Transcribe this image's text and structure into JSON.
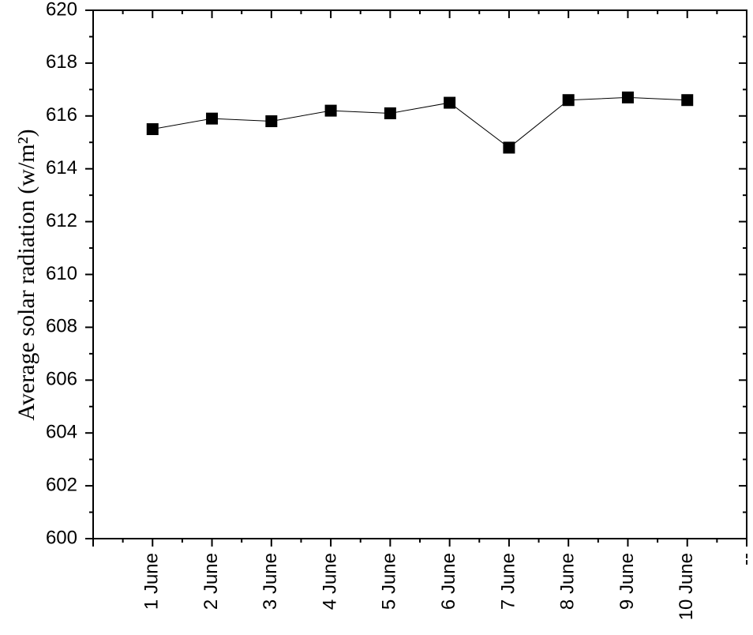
{
  "chart_data": {
    "type": "line",
    "y_label": "Average solar radiation (w/m²)",
    "categories": [
      null,
      "1 June",
      "2 June",
      "3 June",
      "4 June",
      "5 June",
      "6 June",
      "7 June",
      "8 June",
      "9 June",
      "10 June",
      "--"
    ],
    "series": [
      {
        "color": "#000000",
        "values": [
          null,
          615.5,
          615.9,
          615.8,
          616.2,
          616.1,
          616.5,
          614.8,
          616.6,
          616.7,
          616.6,
          null
        ]
      }
    ],
    "ylim": [
      600,
      620
    ],
    "yticks": [
      600,
      602,
      604,
      606,
      608,
      610,
      612,
      614,
      616,
      618,
      620
    ]
  }
}
